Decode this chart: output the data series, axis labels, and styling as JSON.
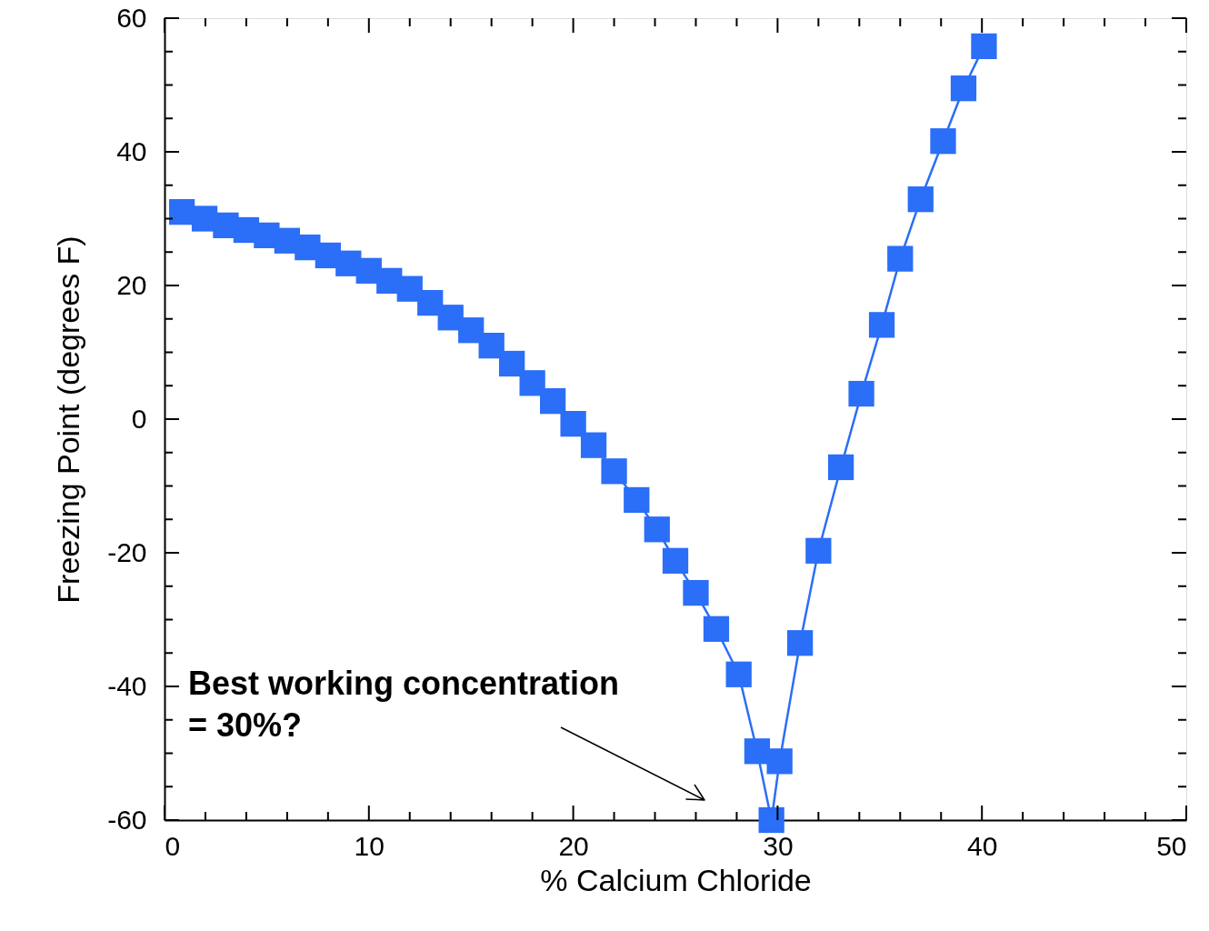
{
  "chart_data": {
    "type": "line",
    "xlabel": "% Calcium Chloride",
    "ylabel": "Freezing Point (degrees F)",
    "x": [
      0.85,
      1.96,
      3.0,
      4.0,
      5.0,
      6.0,
      7.0,
      8.0,
      9.0,
      10.0,
      11.0,
      12.0,
      13.0,
      14.0,
      15.0,
      16.0,
      17.0,
      18.0,
      19.0,
      20.0,
      21.0,
      22.0,
      23.1,
      24.1,
      25.0,
      26.0,
      27.0,
      28.1,
      29.0,
      29.7,
      30.1,
      31.1,
      32.0,
      33.1,
      34.1,
      35.1,
      36.0,
      37.0,
      38.1,
      39.1,
      40.1
    ],
    "series": [
      {
        "color": "#2b6ef7",
        "values": [
          31.0,
          30.0,
          29.0,
          28.3,
          27.5,
          26.7,
          25.7,
          24.5,
          23.3,
          22.2,
          20.7,
          19.5,
          17.4,
          15.2,
          13.3,
          11.0,
          8.3,
          5.4,
          2.7,
          -0.7,
          -3.9,
          -7.8,
          -12.1,
          -16.5,
          -21.2,
          -26.0,
          -31.4,
          -38.2,
          -49.7,
          -60,
          -51.2,
          -33.5,
          -19.7,
          -7.2,
          3.8,
          14.1,
          24.0,
          32.9,
          41.6,
          49.5,
          55.8
        ]
      }
    ],
    "marker": "square",
    "line_style": "solid",
    "grid": false,
    "xlim": [
      0,
      50
    ],
    "ylim": [
      -60,
      60
    ],
    "xticks": [
      0,
      {
        "value": 2,
        "label": null
      },
      {
        "value": 4,
        "label": null
      },
      {
        "value": 6,
        "label": null
      },
      {
        "value": 8,
        "label": null
      },
      10,
      {
        "value": 12,
        "label": null
      },
      {
        "value": 14,
        "label": null
      },
      {
        "value": 16,
        "label": null
      },
      {
        "value": 18,
        "label": null
      },
      20,
      {
        "value": 22,
        "label": null
      },
      {
        "value": 24,
        "label": null
      },
      {
        "value": 26,
        "label": null
      },
      {
        "value": 28,
        "label": null
      },
      30,
      {
        "value": 32,
        "label": null
      },
      {
        "value": 34,
        "label": null
      },
      {
        "value": 36,
        "label": null
      },
      {
        "value": 38,
        "label": null
      },
      40,
      {
        "value": 42,
        "label": null
      },
      {
        "value": 44,
        "label": null
      },
      {
        "value": 46,
        "label": null
      },
      {
        "value": 48,
        "label": null
      },
      50
    ],
    "yticks": [
      -60,
      {
        "value": -55,
        "label": null
      },
      {
        "value": -50,
        "label": null
      },
      {
        "value": -45,
        "label": null
      },
      -40,
      {
        "value": -35,
        "label": null
      },
      {
        "value": -30,
        "label": null
      },
      {
        "value": -25,
        "label": null
      },
      -20,
      {
        "value": -15,
        "label": null
      },
      {
        "value": -10,
        "label": null
      },
      {
        "value": -5,
        "label": null
      },
      0,
      {
        "value": 5,
        "label": null
      },
      {
        "value": 10,
        "label": null
      },
      {
        "value": 15,
        "label": null
      },
      20,
      {
        "value": 25,
        "label": null
      },
      {
        "value": 30,
        "label": null
      },
      {
        "value": 35,
        "label": null
      },
      40,
      {
        "value": 45,
        "label": null
      },
      {
        "value": 50,
        "label": null
      },
      {
        "value": 55,
        "label": null
      },
      60
    ],
    "annotations": [
      "Best working concentration\n= 30%?"
    ]
  }
}
